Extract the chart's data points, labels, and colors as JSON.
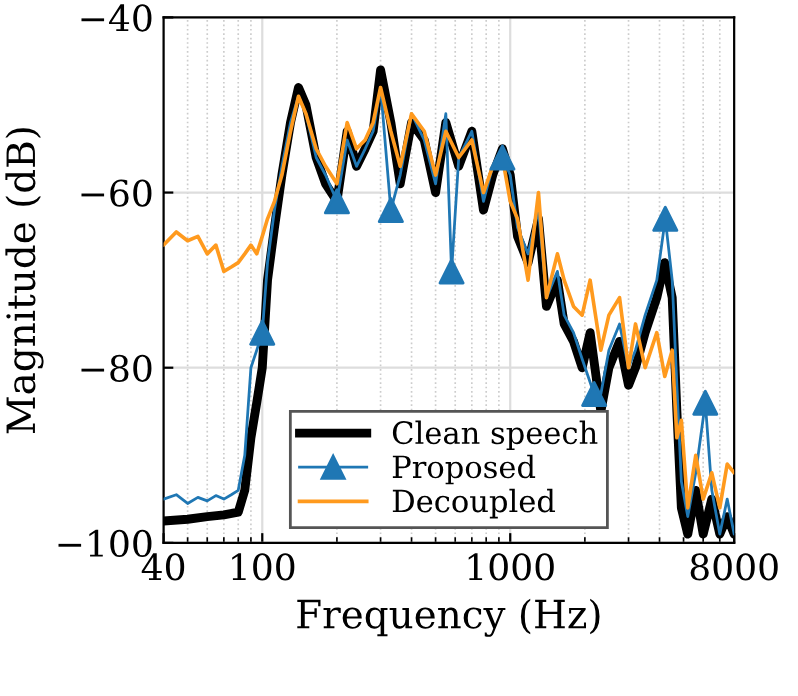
{
  "chart_data": {
    "type": "line",
    "xlabel": "Frequency (Hz)",
    "ylabel": "Magnitude (dB)",
    "log": "x",
    "xlim": [
      40,
      8000
    ],
    "xticks": [
      40,
      100,
      1000,
      8000
    ],
    "ylim": [
      -100,
      -40
    ],
    "yticks": [
      {
        "value": -40,
        "label": "−40"
      },
      {
        "value": -60,
        "label": "−60"
      },
      {
        "value": -80,
        "label": "−80"
      },
      {
        "value": -100,
        "label": "−100"
      }
    ],
    "grid": true,
    "legend": "bottom",
    "series": [
      {
        "name": "Clean speech",
        "color": "#000000",
        "x": [
          40,
          50,
          60,
          70,
          80,
          85,
          90,
          95,
          100,
          105,
          112,
          120,
          130,
          140,
          150,
          165,
          180,
          200,
          220,
          240,
          260,
          280,
          300,
          330,
          360,
          400,
          450,
          500,
          550,
          620,
          700,
          780,
          850,
          930,
          1000,
          1070,
          1180,
          1300,
          1400,
          1550,
          1650,
          1800,
          1950,
          2100,
          2320,
          2500,
          2760,
          3000,
          3200,
          3500,
          3900,
          4200,
          4500,
          4700,
          4900,
          5200,
          5600,
          6000,
          6500,
          7000,
          7500,
          8000
        ],
        "values": [
          -97.5,
          -97.3,
          -97,
          -96.8,
          -96.5,
          -94,
          -88,
          -84,
          -80,
          -70,
          -64,
          -58,
          -52,
          -48,
          -50,
          -56,
          -59,
          -61,
          -53,
          -57,
          -55,
          -53,
          -46,
          -52,
          -59,
          -52,
          -54,
          -60,
          -52,
          -57,
          -53,
          -62,
          -58,
          -55,
          -58,
          -65,
          -68,
          -63,
          -73,
          -70,
          -75,
          -77,
          -80,
          -76,
          -85,
          -80,
          -77,
          -82,
          -80,
          -76,
          -72,
          -68,
          -72,
          -85,
          -96,
          -99,
          -94,
          -99,
          -95,
          -99,
          -97,
          -99
        ]
      },
      {
        "name": "Proposed",
        "color": "#1f77b4",
        "x": [
          40,
          45,
          50,
          55,
          60,
          65,
          70,
          75,
          80,
          85,
          90,
          95,
          100,
          105,
          112,
          120,
          130,
          140,
          150,
          165,
          180,
          200,
          220,
          240,
          260,
          280,
          300,
          330,
          360,
          400,
          450,
          500,
          550,
          580,
          620,
          700,
          780,
          850,
          930,
          1000,
          1070,
          1180,
          1300,
          1400,
          1550,
          1650,
          1800,
          1950,
          2180,
          2320,
          2500,
          2760,
          3000,
          3200,
          3500,
          3900,
          4220,
          4500,
          4700,
          4900,
          5200,
          5600,
          6120,
          6500,
          7000,
          7500,
          8000
        ],
        "values": [
          -95,
          -94.5,
          -95.5,
          -94.8,
          -95.2,
          -94.6,
          -95,
          -94.5,
          -94,
          -90,
          -80,
          -78,
          -76,
          -68,
          -62,
          -57,
          -52,
          -49,
          -51,
          -56,
          -58,
          -61,
          -54,
          -57,
          -55,
          -53,
          -48,
          -62,
          -58,
          -51,
          -54,
          -59,
          -51,
          -69,
          -56,
          -53,
          -61,
          -57,
          -56,
          -58,
          -64,
          -67,
          -62,
          -72,
          -69,
          -74,
          -76,
          -79,
          -83,
          -83,
          -78,
          -75,
          -80,
          -78,
          -74,
          -70,
          -63,
          -70,
          -82,
          -93,
          -97,
          -92,
          -84,
          -94,
          -99,
          -95,
          -99
        ]
      },
      {
        "type": "scatter",
        "color": "#1f77b4",
        "marker": "triangle",
        "x": [
          100,
          200,
          330,
          580,
          930,
          2180,
          4220,
          6120
        ],
        "values": [
          -76,
          -61,
          -62,
          -69,
          -56,
          -83,
          -63,
          -84
        ]
      },
      {
        "name": "Decoupled",
        "color": "#ff9a1e",
        "x": [
          40,
          45,
          50,
          55,
          60,
          65,
          70,
          75,
          80,
          85,
          90,
          95,
          100,
          105,
          112,
          120,
          130,
          140,
          150,
          165,
          180,
          200,
          220,
          240,
          260,
          280,
          300,
          330,
          360,
          400,
          450,
          500,
          550,
          620,
          700,
          780,
          850,
          930,
          1000,
          1070,
          1180,
          1300,
          1400,
          1550,
          1650,
          1800,
          1950,
          2100,
          2320,
          2500,
          2760,
          3000,
          3200,
          3500,
          3900,
          4200,
          4500,
          4700,
          4900,
          5200,
          5600,
          6000,
          6500,
          7000,
          7500,
          8000
        ],
        "values": [
          -66,
          -64.5,
          -65.5,
          -65,
          -67,
          -66,
          -69,
          -68.5,
          -68,
          -67,
          -66,
          -67,
          -65,
          -63,
          -61,
          -58,
          -53,
          -49,
          -51,
          -55,
          -57,
          -59,
          -52,
          -55,
          -54,
          -52,
          -48,
          -53,
          -57,
          -51,
          -53,
          -58,
          -53,
          -56,
          -54,
          -60,
          -57,
          -56,
          -61,
          -63,
          -70,
          -60,
          -72,
          -67,
          -70,
          -73,
          -74,
          -70,
          -78,
          -74,
          -72,
          -80,
          -75,
          -80,
          -76,
          -81,
          -78,
          -88,
          -86,
          -96,
          -90,
          -95,
          -92,
          -96,
          -91,
          -92
        ]
      }
    ]
  }
}
